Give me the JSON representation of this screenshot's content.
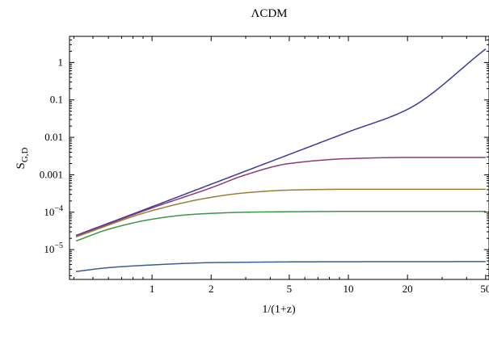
{
  "chart_data": {
    "type": "line",
    "title": "ΛCDM",
    "xlabel": "1/(1+z)",
    "ylabel_main": "S",
    "ylabel_sub": "G,D",
    "x_scale": "log",
    "y_scale": "log",
    "xlim": [
      0.38,
      52
    ],
    "ylim": [
      1.6e-06,
      5
    ],
    "grid": false,
    "x_ticks": [
      {
        "value": 1,
        "label": "1"
      },
      {
        "value": 2,
        "label": "2"
      },
      {
        "value": 5,
        "label": "5"
      },
      {
        "value": 10,
        "label": "10"
      },
      {
        "value": 20,
        "label": "20"
      },
      {
        "value": 50,
        "label": "50"
      }
    ],
    "y_ticks": [
      {
        "value": 1,
        "label": "1"
      },
      {
        "value": 0.1,
        "label": "0.1"
      },
      {
        "value": 0.01,
        "label": "0.01"
      },
      {
        "value": 0.001,
        "label": "0.001"
      },
      {
        "value": 0.0001,
        "label": "10",
        "exp": "−4"
      },
      {
        "value": 1e-05,
        "label": "10",
        "exp": "−5"
      }
    ],
    "series": [
      {
        "color": "#3b3b9a",
        "x": [
          0.41,
          1,
          2,
          5,
          10,
          20,
          50
        ],
        "y": [
          2.4e-05,
          0.00014,
          0.00056,
          0.0035,
          0.014,
          0.056,
          2.3
        ]
      },
      {
        "color": "#8e3a78",
        "x": [
          0.41,
          1,
          2,
          3,
          5,
          10,
          20,
          50
        ],
        "y": [
          2.3e-05,
          0.00013,
          0.00045,
          0.001,
          0.002,
          0.0027,
          0.0029,
          0.0029
        ]
      },
      {
        "color": "#9a7e35",
        "x": [
          0.41,
          1,
          2,
          3,
          5,
          10,
          20,
          50
        ],
        "y": [
          2.2e-05,
          0.00011,
          0.00025,
          0.00033,
          0.00039,
          0.00041,
          0.00041,
          0.00041
        ]
      },
      {
        "color": "#3d9447",
        "x": [
          0.41,
          0.6,
          1,
          1.5,
          2,
          3,
          5,
          10,
          50
        ],
        "y": [
          1.7e-05,
          3.5e-05,
          6.5e-05,
          8.5e-05,
          9.3e-05,
          0.0001,
          0.000103,
          0.000105,
          0.000105
        ]
      },
      {
        "color": "#3a5d91",
        "x": [
          0.41,
          0.6,
          1,
          1.5,
          2,
          3,
          5,
          10,
          50
        ],
        "y": [
          2.6e-06,
          3.3e-06,
          3.9e-06,
          4.3e-06,
          4.5e-06,
          4.6e-06,
          4.7e-06,
          4.75e-06,
          4.8e-06
        ]
      }
    ]
  }
}
